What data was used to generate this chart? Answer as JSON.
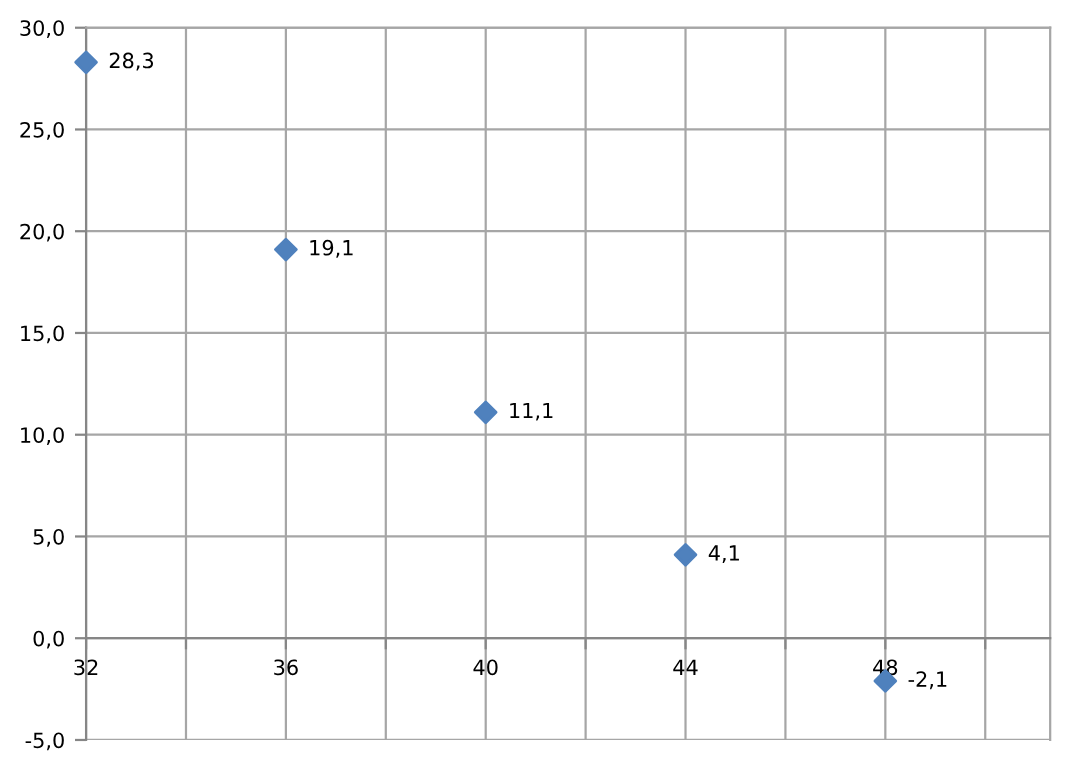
{
  "chart_data": {
    "type": "scatter",
    "x": [
      32,
      36,
      40,
      44,
      48
    ],
    "series": [
      {
        "color": "#4f81bd",
        "values": [
          28.3,
          19.1,
          11.1,
          4.1,
          -2.1
        ],
        "value_labels": [
          "28,3",
          "19,1",
          "11,1",
          "4,1",
          "-2,1"
        ]
      }
    ],
    "xlim": [
      32,
      51.3
    ],
    "xticks": [
      32,
      {
        "value": 34,
        "label": null
      },
      36,
      {
        "value": 38,
        "label": null
      },
      40,
      {
        "value": 42,
        "label": null
      },
      44,
      {
        "value": 46,
        "label": null
      },
      48,
      {
        "value": 50,
        "label": null
      }
    ],
    "ylim": [
      -5,
      30
    ],
    "yticks": [
      {
        "value": -5,
        "label": "-5,0"
      },
      {
        "value": 0,
        "label": "0,0"
      },
      {
        "value": 5,
        "label": "5,0"
      },
      {
        "value": 10,
        "label": "10,0"
      },
      {
        "value": 15,
        "label": "15,0"
      },
      {
        "value": 20,
        "label": "20,0"
      },
      {
        "value": 25,
        "label": "25,0"
      },
      {
        "value": 30,
        "label": "30,0"
      }
    ],
    "grid": true,
    "marker": "diamond"
  }
}
